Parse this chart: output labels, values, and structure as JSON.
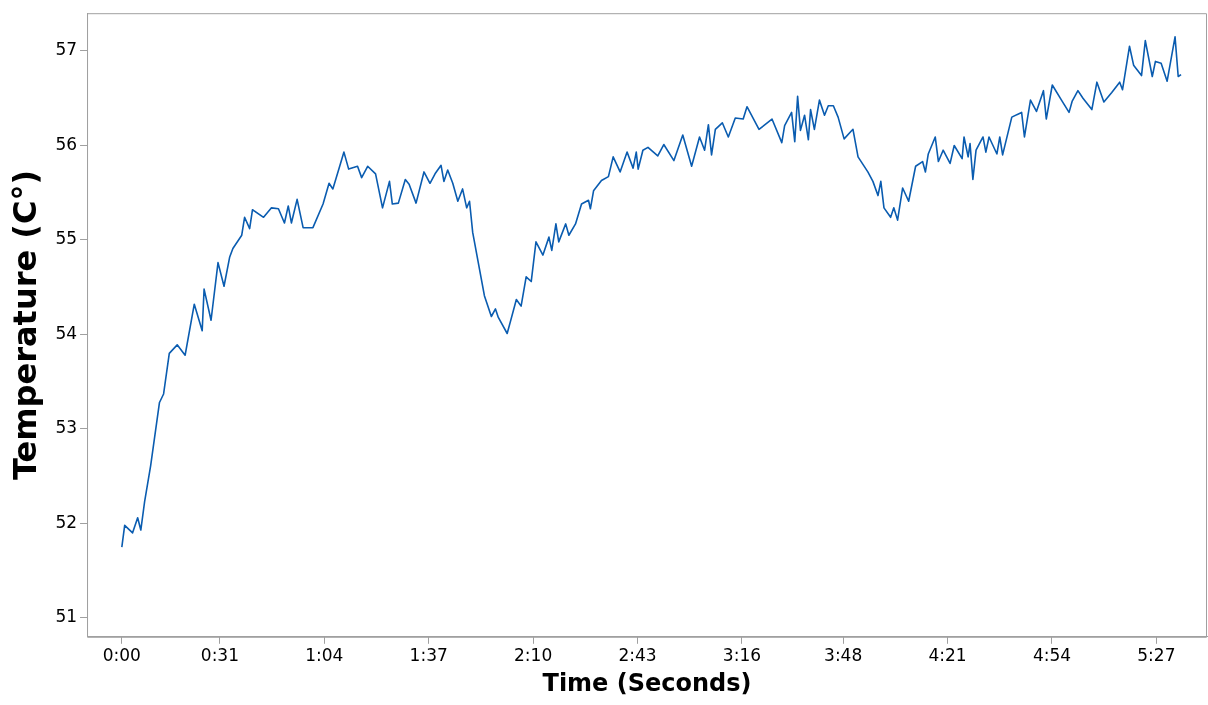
{
  "chart_data": {
    "type": "line",
    "xlabel": "Time (Seconds)",
    "ylabel": "Temperature (C°)",
    "xlim": [
      -11,
      343
    ],
    "ylim": [
      50.8,
      57.4
    ],
    "xticks": [
      {
        "value": 0,
        "label": "0:00"
      },
      {
        "value": 31,
        "label": "0:31"
      },
      {
        "value": 64,
        "label": "1:04"
      },
      {
        "value": 97,
        "label": "1:37"
      },
      {
        "value": 130,
        "label": "2:10"
      },
      {
        "value": 163,
        "label": "2:43"
      },
      {
        "value": 196,
        "label": "3:16"
      },
      {
        "value": 228,
        "label": "3:48"
      },
      {
        "value": 261,
        "label": "4:21"
      },
      {
        "value": 294,
        "label": "4:54"
      },
      {
        "value": 327,
        "label": "5:27"
      }
    ],
    "yticks": [
      51,
      52,
      53,
      54,
      55,
      56,
      57
    ],
    "grid": false,
    "legend": false,
    "marker": "none",
    "line_style": "solid",
    "series": [
      {
        "color": "#0a5cb0",
        "x": [
          0,
          0.9,
          3.4,
          5.0,
          6.0,
          7.2,
          9.1,
          11.9,
          13.2,
          15.0,
          17.5,
          20.0,
          22.9,
          25.4,
          26.0,
          28.2,
          30.4,
          32.3,
          34.1,
          35.1,
          37.9,
          38.8,
          40.4,
          41.3,
          44.8,
          47.3,
          49.5,
          51.4,
          52.6,
          53.6,
          55.4,
          57.3,
          60.4,
          63.6,
          65.5,
          66.7,
          68.6,
          70.2,
          71.7,
          74.5,
          75.8,
          77.7,
          80.2,
          82.4,
          84.6,
          85.5,
          87.4,
          89.6,
          90.8,
          93.0,
          95.5,
          97.4,
          99.0,
          100.9,
          101.8,
          103.0,
          104.6,
          106.2,
          107.7,
          109.0,
          109.9,
          110.9,
          114.6,
          116.8,
          118.1,
          119.0,
          121.8,
          124.7,
          126.2,
          127.8,
          129.4,
          130.9,
          133.1,
          135.0,
          135.9,
          137.2,
          138.1,
          140.3,
          141.3,
          143.4,
          145.3,
          147.5,
          148.1,
          149.1,
          151.6,
          153.8,
          155.3,
          157.5,
          159.7,
          161.6,
          162.6,
          163.2,
          164.7,
          166.3,
          169.4,
          171.3,
          174.5,
          177.3,
          180.1,
          182.6,
          184.2,
          185.4,
          186.4,
          187.6,
          189.8,
          191.7,
          193.9,
          196.4,
          197.6,
          201.4,
          205.5,
          208.6,
          209.5,
          211.7,
          212.7,
          213.6,
          214.5,
          215.8,
          217.0,
          217.7,
          218.9,
          220.5,
          222.1,
          223.3,
          224.9,
          226.4,
          228.3,
          230.5,
          231.1,
          232.7,
          235.8,
          237.4,
          239.0,
          239.9,
          240.9,
          243.0,
          244.0,
          245.2,
          246.8,
          248.7,
          250.9,
          253.1,
          254.0,
          254.9,
          257.1,
          258.1,
          259.6,
          261.8,
          263.1,
          265.6,
          266.2,
          267.5,
          268.1,
          269.0,
          270.0,
          272.2,
          273.1,
          274.1,
          276.6,
          277.5,
          278.4,
          281.3,
          284.4,
          285.3,
          287.2,
          289.1,
          291.3,
          292.2,
          294.1,
          297.2,
          299.4,
          300.4,
          302.2,
          303.8,
          306.6,
          308.2,
          310.4,
          312.9,
          315.4,
          316.3,
          318.5,
          319.8,
          322.3,
          323.5,
          325.7,
          326.7,
          328.5,
          330.4,
          332.9,
          333.9,
          334.8
        ],
        "values": [
          51.75,
          51.98,
          51.9,
          52.06,
          51.93,
          52.23,
          52.61,
          53.28,
          53.37,
          53.8,
          53.89,
          53.78,
          54.32,
          54.04,
          54.48,
          54.15,
          54.76,
          54.51,
          54.82,
          54.91,
          55.05,
          55.24,
          55.12,
          55.32,
          55.24,
          55.34,
          55.33,
          55.18,
          55.36,
          55.18,
          55.43,
          55.13,
          55.13,
          55.38,
          55.6,
          55.54,
          55.75,
          55.93,
          55.75,
          55.78,
          55.66,
          55.78,
          55.7,
          55.34,
          55.62,
          55.38,
          55.39,
          55.64,
          55.59,
          55.39,
          55.72,
          55.6,
          55.7,
          55.79,
          55.62,
          55.74,
          55.6,
          55.41,
          55.54,
          55.34,
          55.41,
          55.08,
          54.41,
          54.19,
          54.27,
          54.18,
          54.01,
          54.37,
          54.3,
          54.61,
          54.56,
          54.98,
          54.84,
          55.03,
          54.89,
          55.17,
          54.98,
          55.17,
          55.05,
          55.17,
          55.38,
          55.42,
          55.33,
          55.52,
          55.63,
          55.67,
          55.88,
          55.72,
          55.93,
          55.76,
          55.93,
          55.75,
          55.95,
          55.98,
          55.89,
          56.01,
          55.84,
          56.11,
          55.78,
          56.09,
          55.95,
          56.22,
          55.9,
          56.17,
          56.24,
          56.09,
          56.29,
          56.28,
          56.41,
          56.17,
          56.28,
          56.03,
          56.21,
          56.35,
          56.04,
          56.52,
          56.16,
          56.32,
          56.06,
          56.38,
          56.17,
          56.48,
          56.32,
          56.42,
          56.42,
          56.3,
          56.07,
          56.15,
          56.17,
          55.88,
          55.72,
          55.62,
          55.47,
          55.62,
          55.34,
          55.24,
          55.34,
          55.21,
          55.55,
          55.41,
          55.78,
          55.83,
          55.72,
          55.91,
          56.09,
          55.83,
          55.95,
          55.81,
          56.0,
          55.86,
          56.09,
          55.88,
          56.02,
          55.64,
          55.95,
          56.09,
          55.93,
          56.09,
          55.91,
          56.09,
          55.9,
          56.3,
          56.35,
          56.09,
          56.48,
          56.36,
          56.58,
          56.28,
          56.64,
          56.47,
          56.35,
          56.47,
          56.58,
          56.5,
          56.38,
          56.67,
          56.46,
          56.56,
          56.67,
          56.59,
          57.05,
          56.85,
          56.74,
          57.11,
          56.73,
          56.89,
          56.87,
          56.68,
          57.15,
          56.73,
          56.75
        ]
      }
    ]
  }
}
